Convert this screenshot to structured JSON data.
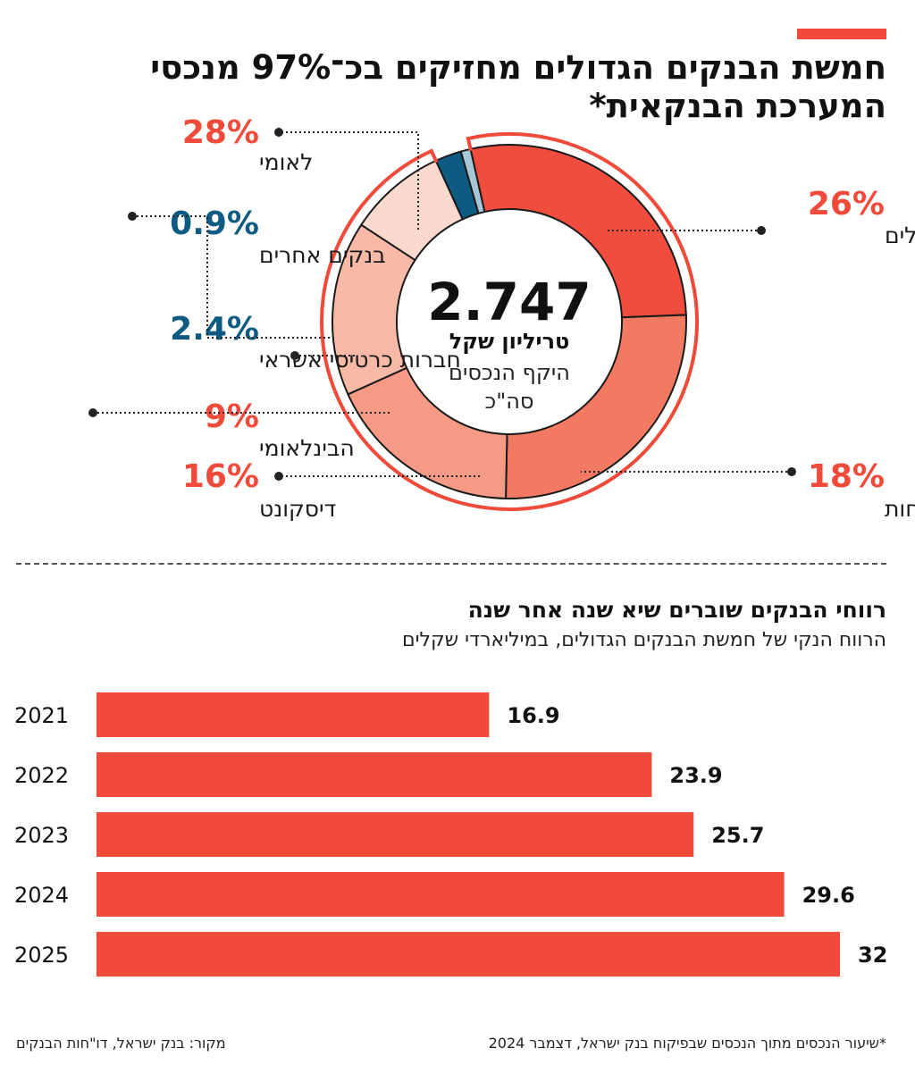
{
  "header": {
    "title": "חמשת הבנקים הגדולים מחזיקים בכ־97% מנכסי המערכת הבנקאית*"
  },
  "chart_data": [
    {
      "type": "pie",
      "center": {
        "value": "2.747",
        "unit": "טריליון שקל",
        "caption_line1": "היקף הנכסים",
        "caption_line2": "סה\"כ"
      },
      "slices": [
        {
          "label": "לאומי",
          "value_label": "28%",
          "value": 28,
          "color": "#f04d3f"
        },
        {
          "label": "הפועלים",
          "value_label": "26%",
          "value": 26,
          "color": "#f27a62"
        },
        {
          "label": "מזרחי־טפחות",
          "value_label": "18%",
          "value": 18,
          "color": "#f59a84"
        },
        {
          "label": "דיסקונט",
          "value_label": "16%",
          "value": 16,
          "color": "#f8b9a7"
        },
        {
          "label": "הבינלאומי",
          "value_label": "9%",
          "value": 9,
          "color": "#fbd9cf"
        },
        {
          "label": "חברות כרטיסי אשראי",
          "value_label": "2.4%",
          "value": 2.4,
          "color": "#0d5b82"
        },
        {
          "label": "בנקים אחרים",
          "value_label": "0.9%",
          "value": 0.9,
          "color": "#a7c6d6"
        }
      ],
      "colors": {
        "red_label": "#ef4a3a",
        "blue_label": "#0d5b82"
      }
    },
    {
      "type": "bar",
      "orientation": "horizontal",
      "title": "רווחי הבנקים שוברים שיא שנה אחר שנה",
      "subtitle": "הרווח הנקי של חמשת הבנקים הגדולים, במיליארדי שקלים",
      "categories": [
        "2021",
        "2022",
        "2023",
        "2024",
        "2025"
      ],
      "values": [
        16.9,
        23.9,
        25.7,
        29.6,
        32
      ],
      "value_labels": [
        "16.9",
        "23.9",
        "25.7",
        "29.6",
        "32"
      ],
      "color": "#ef4a3a"
    }
  ],
  "footer": {
    "source": "מקור: בנק ישראל, דו\"חות הבנקים",
    "note": "*שיעור הנכסים מתוך הנכסים שבפיקוח בנק ישראל, דצמבר 2024"
  }
}
